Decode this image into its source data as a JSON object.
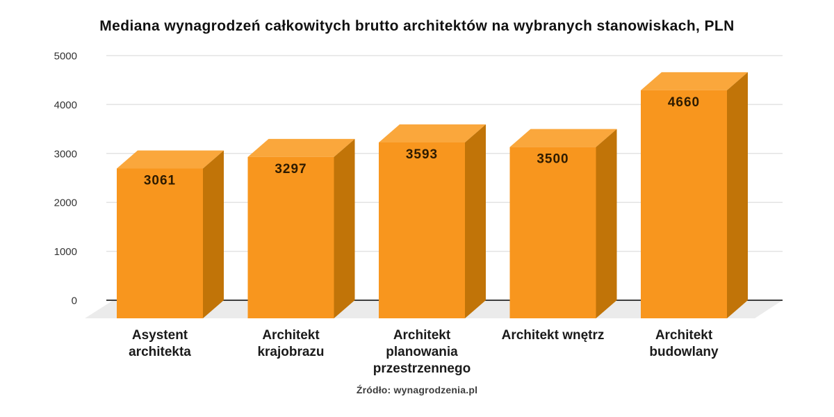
{
  "page": {
    "title": "Mediana wynagrodzeń całkowitych brutto architektów na wybranych stanowiskach, PLN",
    "source_note": "Źródło: wynagrodzenia.pl"
  },
  "colors": {
    "background": "#ffffff",
    "bar_front": "#F8961E",
    "bar_top": "#FAA73C",
    "bar_side": "#C17408",
    "value_text": "#2E1B00",
    "grid_line": "#E3E3E3",
    "zero_line": "#3E3E3E",
    "floor": "#EBEBEB",
    "tick_text": "#333333",
    "category_text": "#1A1A1A",
    "title_text": "#111111",
    "source_text": "#3C3C3C"
  },
  "chart_data": {
    "type": "bar",
    "style": "3d-column",
    "title": "Mediana wynagrodzeń całkowitych brutto architektów na wybranych stanowiskach, PLN",
    "unit": "PLN",
    "categories": [
      "Asystent architekta",
      "Architekt krajobrazu",
      "Architekt planowania przestrzennego",
      "Architekt wnętrz",
      "Architekt budowlany"
    ],
    "category_label_lines": [
      [
        "Asystent",
        "architekta"
      ],
      [
        "Architekt",
        "krajobrazu"
      ],
      [
        "Architekt",
        "planowania",
        "przestrzennego"
      ],
      [
        "Architekt wnętrz"
      ],
      [
        "Architekt",
        "budowlany"
      ]
    ],
    "values": [
      3061,
      3297,
      3593,
      3500,
      4660
    ],
    "value_labels": [
      "3061",
      "3297",
      "3593",
      "3500",
      "4660"
    ],
    "xlabel": "",
    "ylabel": "",
    "ylim": [
      0,
      5000
    ],
    "yticks": [
      0,
      1000,
      2000,
      3000,
      4000,
      5000
    ],
    "grid": true,
    "legend": false,
    "source": "Źródło: wynagrodzenia.pl"
  }
}
